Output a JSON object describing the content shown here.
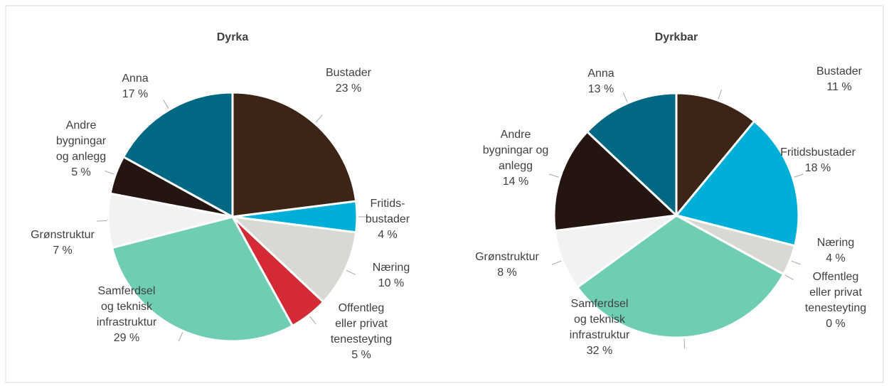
{
  "chart_data": [
    {
      "type": "pie",
      "title": "Dyrka",
      "categories": [
        "Bustader",
        "Fritids-\nbustader",
        "Næring",
        "Offentleg\neller privat\ntenesteyting",
        "Samferdsel\nog teknisk\ninfrastruktur",
        "Grønstruktur",
        "Andre\nbygningar\nog anlegg",
        "Anna"
      ],
      "values": [
        23,
        4,
        10,
        5,
        29,
        7,
        5,
        17
      ],
      "value_labels": [
        "23 %",
        "4 %",
        "10 %",
        "5 %",
        "29 %",
        "7 %",
        "5 %",
        "17 %"
      ],
      "colors": [
        "#3c2517",
        "#00afd8",
        "#d9d9d4",
        "#d42a35",
        "#6fcdb4",
        "#f2f2f0",
        "#241510",
        "#006882"
      ]
    },
    {
      "type": "pie",
      "title": "Dyrkbar",
      "categories": [
        "Bustader",
        "Fritidsbustader",
        "Næring",
        "Offentleg\neller privat\ntenesteyting",
        "Samferdsel\nog teknisk\ninfrastruktur",
        "Grønstruktur",
        "Andre\nbygningar og\nanlegg",
        "Anna"
      ],
      "values": [
        11,
        18,
        4,
        0,
        32,
        8,
        14,
        13
      ],
      "value_labels": [
        "11 %",
        "18 %",
        "4 %",
        "0 %",
        "32 %",
        "8 %",
        "14 %",
        "13 %"
      ],
      "colors": [
        "#3c2517",
        "#00afd8",
        "#d9d9d4",
        "#d42a35",
        "#6fcdb4",
        "#f2f2f0",
        "#241510",
        "#006882"
      ]
    }
  ]
}
